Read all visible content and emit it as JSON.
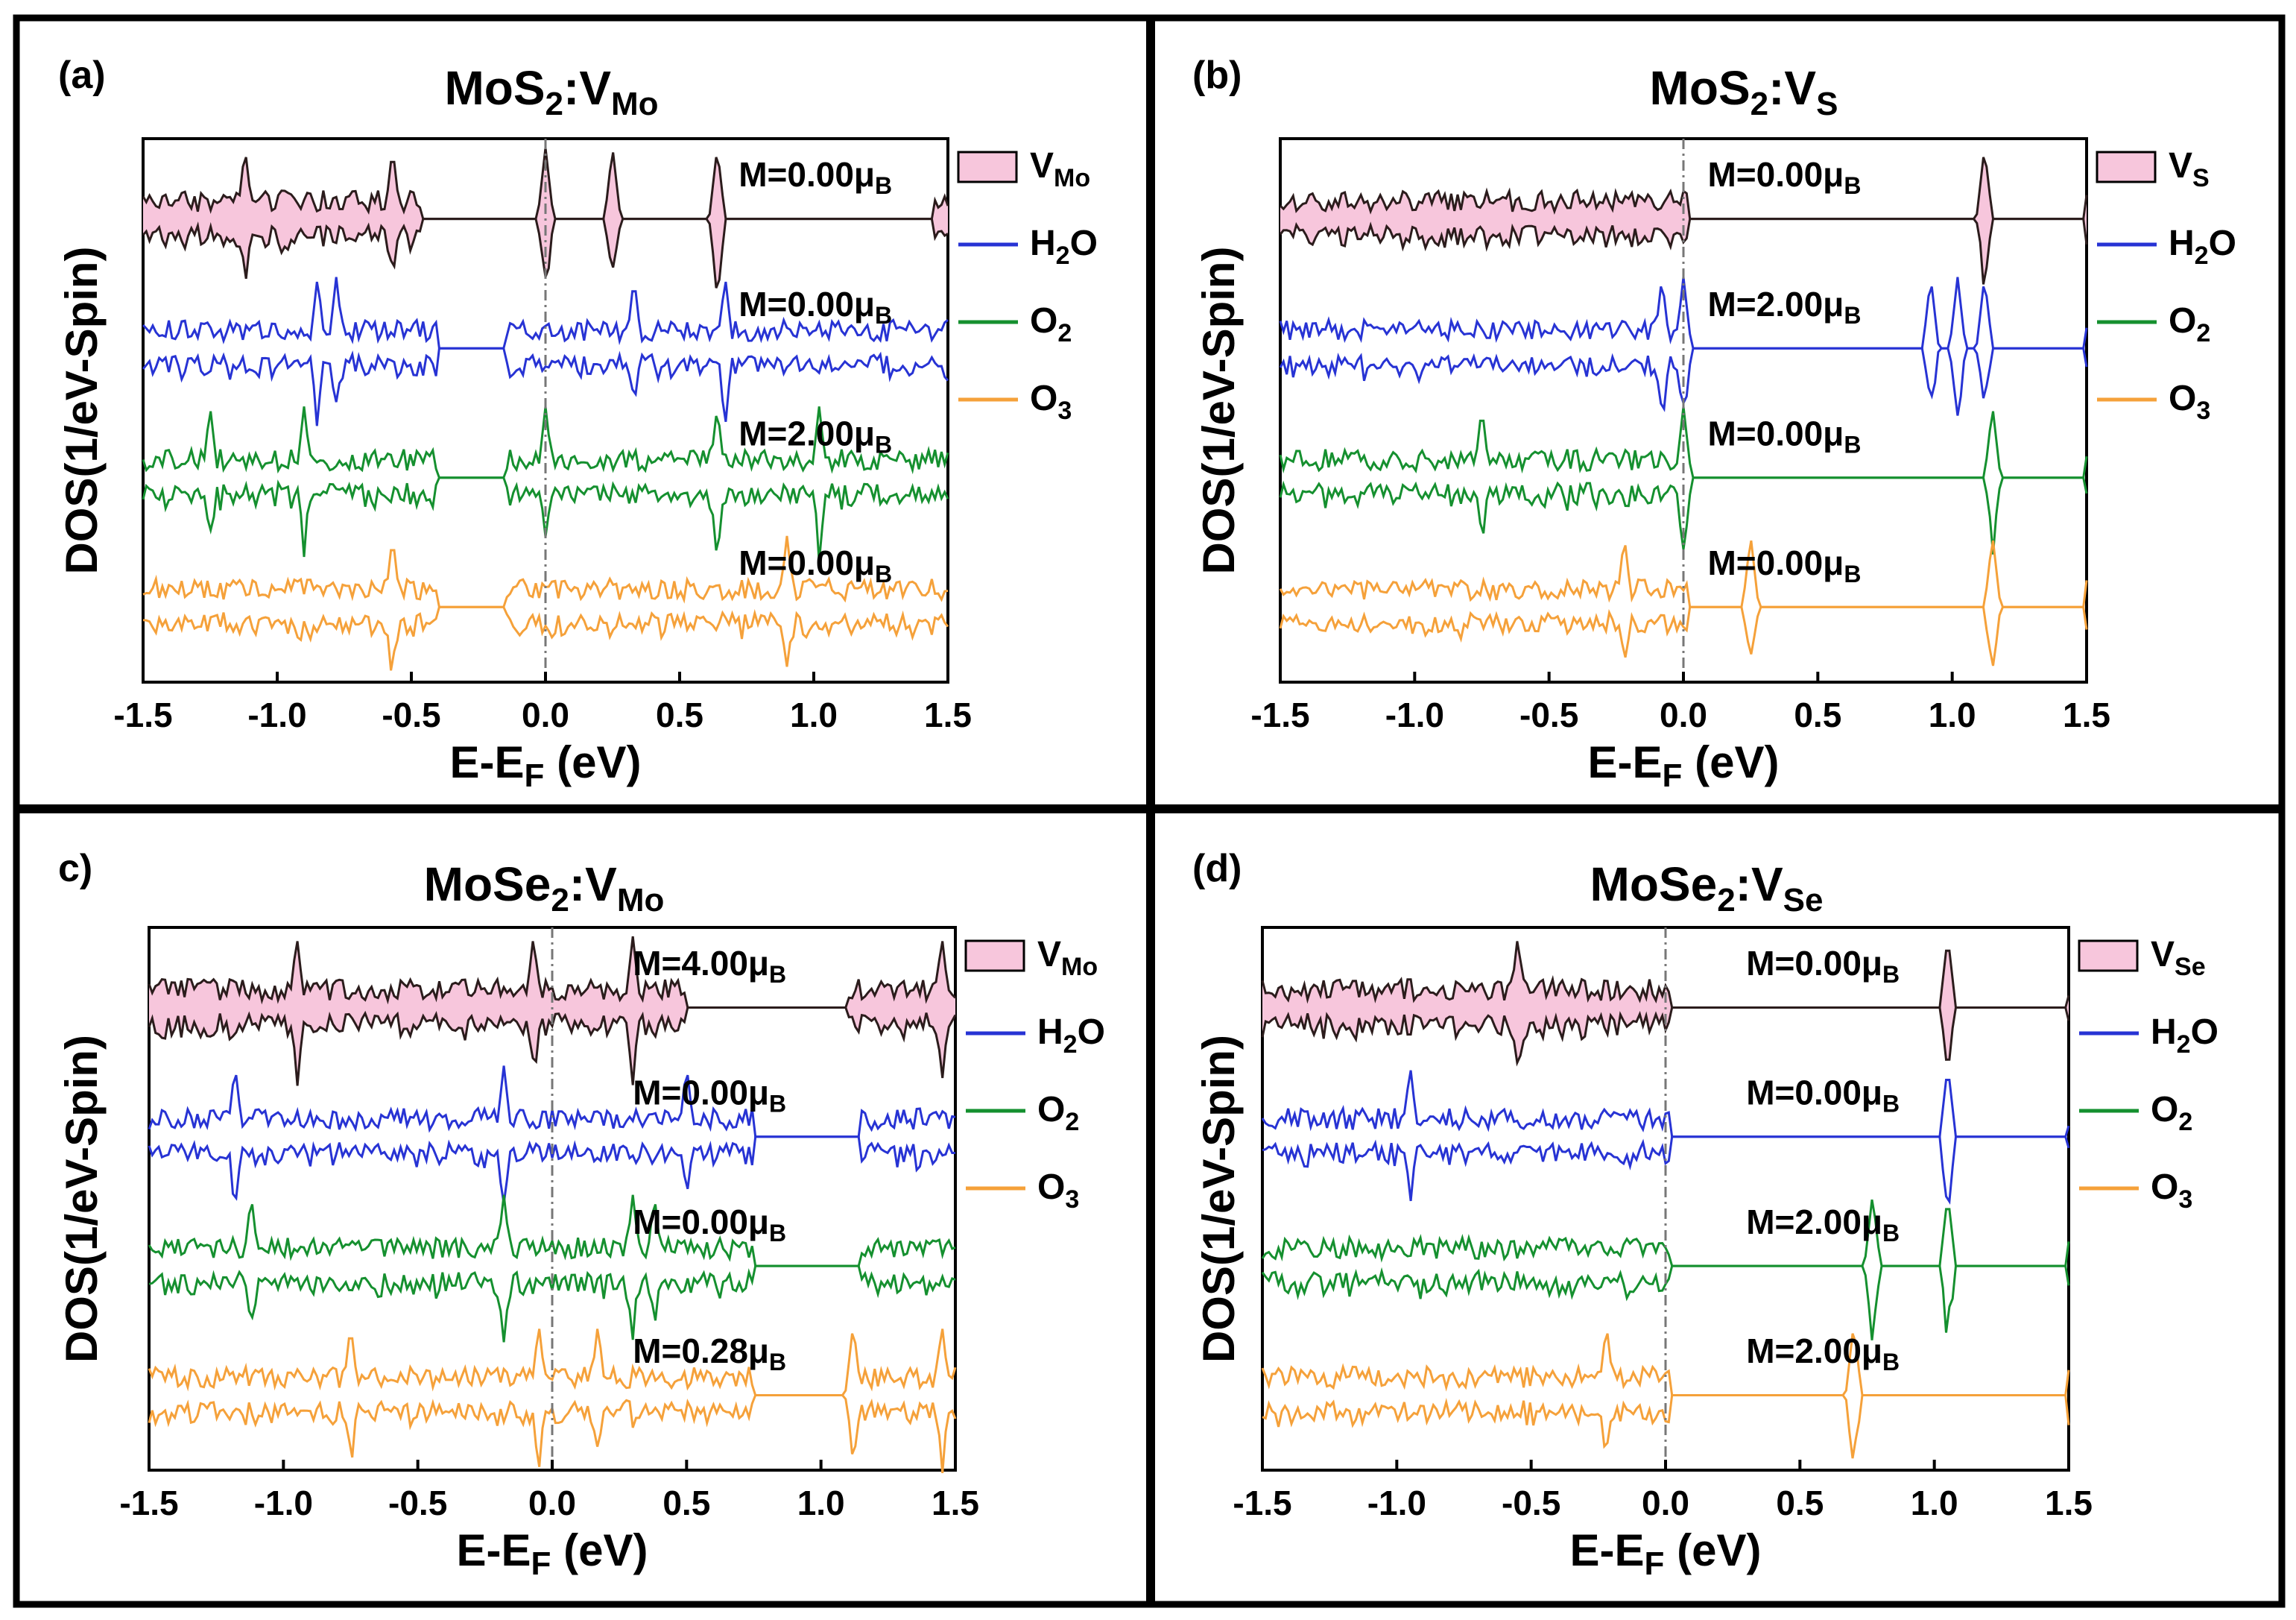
{
  "figure": {
    "colors": {
      "vacancy_fill": "#f7c6dc",
      "vacancy_line": "#2b1c1c",
      "h2o": "#2733d4",
      "o2": "#15902f",
      "o3": "#f5a13a",
      "fermi_line": "#777777"
    }
  },
  "chart_data": [
    {
      "type": "line",
      "panel": "(a)",
      "title": {
        "main": "MoS",
        "sub2": "2",
        "mid": ":V",
        "sub": "Mo"
      },
      "xlabel": {
        "pre": "E-E",
        "sub": "F",
        "post": " (eV)"
      },
      "ylabel": "DOS(1/eV-Spin)",
      "xlim": [
        -1.5,
        1.5
      ],
      "xticks": [
        "-1.5",
        "-1.0",
        "-0.5",
        "0.0",
        "0.5",
        "1.0",
        "1.5"
      ],
      "legend": [
        {
          "name": "V",
          "sub": "Mo",
          "style": "fill"
        },
        {
          "name": "H",
          "sub": "2",
          "post": "O",
          "style": "line"
        },
        {
          "name": "O",
          "sub": "2",
          "post": "",
          "style": "line"
        },
        {
          "name": "O",
          "sub": "3",
          "post": "",
          "style": "line"
        }
      ],
      "series": [
        {
          "name": "V_Mo",
          "moment": "M=0.00μ",
          "moment_sub": "B",
          "spike_x": [
            -1.12,
            -0.57,
            0.0,
            0.25,
            0.64
          ],
          "gap": [
            -0.46,
            1.45
          ]
        },
        {
          "name": "H2O",
          "moment": "M=0.00μ",
          "moment_sub": "B",
          "spike_x": [
            -0.85,
            -0.78,
            0.33,
            0.67
          ],
          "gap": [
            -0.4,
            -0.15
          ]
        },
        {
          "name": "O2",
          "moment": "M=2.00μ",
          "moment_sub": "B",
          "spike_x": [
            -1.25,
            -0.9,
            0.0,
            0.64,
            1.02
          ],
          "gap": [
            -0.4,
            -0.15
          ]
        },
        {
          "name": "O3",
          "moment": "M=0.00μ",
          "moment_sub": "B",
          "spike_x": [
            -0.57,
            0.9
          ],
          "gap": [
            -0.4,
            -0.15
          ]
        }
      ]
    },
    {
      "type": "line",
      "panel": "(b)",
      "title": {
        "main": "MoS",
        "sub2": "2",
        "mid": ":V",
        "sub": "S"
      },
      "xlabel": {
        "pre": "E-E",
        "sub": "F",
        "post": " (eV)"
      },
      "ylabel": "DOS(1/eV-Spin)",
      "xlim": [
        -1.5,
        1.5
      ],
      "xticks": [
        "-1.5",
        "-1.0",
        "-0.5",
        "0.0",
        "0.5",
        "1.0",
        "1.5"
      ],
      "legend": [
        {
          "name": "V",
          "sub": "S",
          "style": "fill"
        },
        {
          "name": "H",
          "sub": "2",
          "post": "O",
          "style": "line"
        },
        {
          "name": "O",
          "sub": "2",
          "post": "",
          "style": "line"
        },
        {
          "name": "O",
          "sub": "3",
          "post": "",
          "style": "line"
        }
      ],
      "series": [
        {
          "name": "V_S",
          "moment": "M=0.00μ",
          "moment_sub": "B",
          "spike_x": [
            1.12
          ],
          "gap": [
            0.02,
            1.5
          ]
        },
        {
          "name": "H2O",
          "moment": "M=2.00μ",
          "moment_sub": "B",
          "spike_x": [
            -0.08,
            0.0,
            0.92,
            1.02,
            1.12
          ],
          "gap": [
            0.02,
            1.5
          ]
        },
        {
          "name": "O2",
          "moment": "M=0.00μ",
          "moment_sub": "B",
          "spike_x": [
            -0.75,
            0.0,
            1.15
          ],
          "gap": [
            0.02,
            1.5
          ]
        },
        {
          "name": "O3",
          "moment": "M=0.00μ",
          "moment_sub": "B",
          "spike_x": [
            -0.22,
            0.25,
            1.15
          ],
          "gap": [
            0.02,
            1.5
          ]
        }
      ]
    },
    {
      "type": "line",
      "panel": "c)",
      "title": {
        "main": "MoSe",
        "sub2": "2",
        "mid": ":V",
        "sub": "Mo"
      },
      "xlabel": {
        "pre": "E-E",
        "sub": "F",
        "post": " (eV)"
      },
      "ylabel": "DOS(1/eV-Spin)",
      "xlim": [
        -1.5,
        1.5
      ],
      "xticks": [
        "-1.5",
        "-1.0",
        "-0.5",
        "0.0",
        "0.5",
        "1.0",
        "1.5"
      ],
      "legend": [
        {
          "name": "V",
          "sub": "Mo",
          "style": "fill"
        },
        {
          "name": "H",
          "sub": "2",
          "post": "O",
          "style": "line"
        },
        {
          "name": "O",
          "sub": "2",
          "post": "",
          "style": "line"
        },
        {
          "name": "O",
          "sub": "3",
          "post": "",
          "style": "line"
        }
      ],
      "series": [
        {
          "name": "V_Mo",
          "moment": "M=4.00μ",
          "moment_sub": "B",
          "spike_x": [
            -0.95,
            -0.07,
            0.3,
            1.45
          ],
          "gap": [
            0.5,
            1.1
          ]
        },
        {
          "name": "H2O",
          "moment": "M=0.00μ",
          "moment_sub": "B",
          "spike_x": [
            -1.18,
            -0.18,
            0.5
          ],
          "gap": [
            0.75,
            1.15
          ]
        },
        {
          "name": "O2",
          "moment": "M=0.00μ",
          "moment_sub": "B",
          "spike_x": [
            -1.12,
            -0.18,
            0.3,
            0.38
          ],
          "gap": [
            0.75,
            1.15
          ]
        },
        {
          "name": "O3",
          "moment": "M=0.28μ",
          "moment_sub": "B",
          "spike_x": [
            -0.75,
            -0.05,
            0.17,
            1.12,
            1.45
          ],
          "gap": [
            0.75,
            1.1
          ]
        }
      ]
    },
    {
      "type": "line",
      "panel": "(d)",
      "title": {
        "main": "MoSe",
        "sub2": "2",
        "mid": ":V",
        "sub": "Se"
      },
      "xlabel": {
        "pre": "E-E",
        "sub": "F",
        "post": " (eV)"
      },
      "ylabel": "DOS(1/eV-Spin)",
      "xlim": [
        -1.5,
        1.5
      ],
      "xticks": [
        "-1.5",
        "-1.0",
        "-0.5",
        "0.0",
        "0.5",
        "1.0",
        "1.5"
      ],
      "legend": [
        {
          "name": "V",
          "sub": "Se",
          "style": "fill"
        },
        {
          "name": "H",
          "sub": "2",
          "post": "O",
          "style": "line"
        },
        {
          "name": "O",
          "sub": "2",
          "post": "",
          "style": "line"
        },
        {
          "name": "O",
          "sub": "3",
          "post": "",
          "style": "line"
        }
      ],
      "series": [
        {
          "name": "V_Se",
          "moment": "M=0.00μ",
          "moment_sub": "B",
          "spike_x": [
            -0.55,
            1.05
          ],
          "gap": [
            0.02,
            1.5
          ]
        },
        {
          "name": "H2O",
          "moment": "M=0.00μ",
          "moment_sub": "B",
          "spike_x": [
            -0.95,
            1.05
          ],
          "gap": [
            0.02,
            1.5
          ]
        },
        {
          "name": "O2",
          "moment": "M=2.00μ",
          "moment_sub": "B",
          "spike_x": [
            0.77,
            1.05
          ],
          "gap": [
            0.02,
            1.5
          ]
        },
        {
          "name": "O3",
          "moment": "M=2.00μ",
          "moment_sub": "B",
          "spike_x": [
            -0.22,
            0.7
          ],
          "gap": [
            0.02,
            1.5
          ]
        }
      ]
    }
  ]
}
